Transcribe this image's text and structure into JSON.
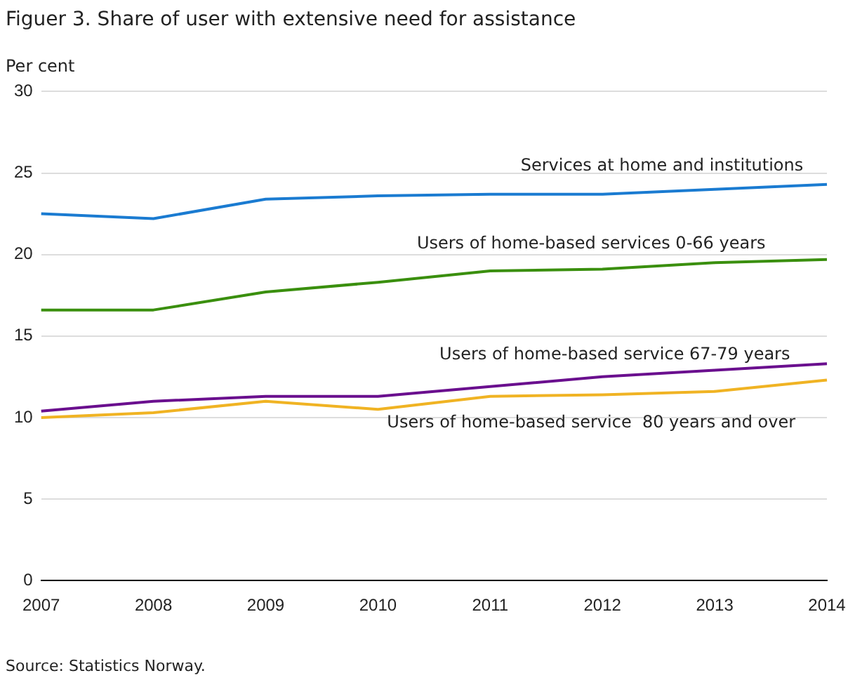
{
  "chart_data": {
    "type": "line",
    "title": "Figuer 3. Share of user with extensive need for assistance",
    "ylabel": "Per cent",
    "categories": [
      "2007",
      "2008",
      "2009",
      "2010",
      "2011",
      "2012",
      "2013",
      "2014"
    ],
    "series": [
      {
        "name": "Services at home and institutions",
        "color": "#1a7bd1",
        "values": [
          22.5,
          22.2,
          23.4,
          23.6,
          23.7,
          23.7,
          24.0,
          24.3
        ]
      },
      {
        "name": "Users of home-based services 0-66 years",
        "color": "#3a8f0e",
        "values": [
          16.6,
          16.6,
          17.7,
          18.3,
          19.0,
          19.1,
          19.5,
          19.7
        ]
      },
      {
        "name": "Users of home-based service 67-79 years",
        "color": "#6a0f8e",
        "values": [
          10.4,
          11.0,
          11.3,
          11.3,
          11.9,
          12.5,
          12.9,
          13.3
        ]
      },
      {
        "name": "Users of home-based service  80 years and over",
        "color": "#f0b323",
        "values": [
          10.0,
          10.3,
          11.0,
          10.5,
          11.3,
          11.4,
          11.6,
          12.3
        ]
      }
    ],
    "ylim": [
      0,
      30
    ],
    "yticks": [
      0,
      5,
      10,
      15,
      20,
      25,
      30
    ],
    "grid": "y",
    "legend": false,
    "marker": "none",
    "line_style": "solid",
    "annotations": [
      "Source: Statistics Norway."
    ]
  }
}
